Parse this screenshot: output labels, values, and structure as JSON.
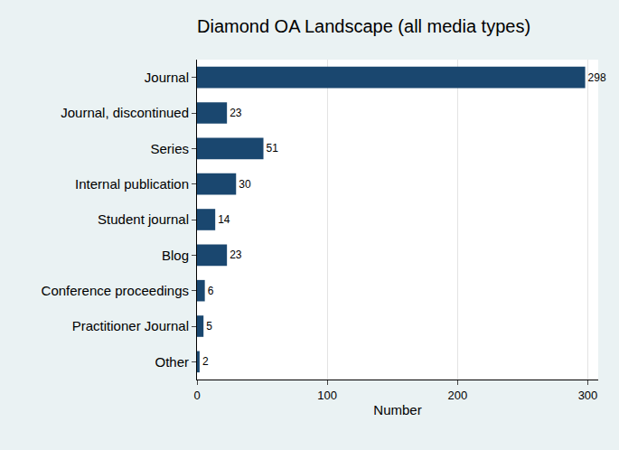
{
  "chart_data": {
    "type": "bar",
    "orientation": "horizontal",
    "title": "Diamond OA Landscape (all media types)",
    "x_label": "Number",
    "categories": [
      "Journal",
      "Journal, discontinued",
      "Series",
      "Internal publication",
      "Student journal",
      "Blog",
      "Conference proceedings",
      "Practitioner Journal",
      "Other"
    ],
    "values": [
      298,
      23,
      51,
      30,
      14,
      23,
      6,
      5,
      2
    ],
    "color": "#1a476f",
    "xlim": [
      0,
      308
    ],
    "xticks": [
      0,
      100,
      200,
      300
    ],
    "grid": true,
    "data_labels": true
  }
}
